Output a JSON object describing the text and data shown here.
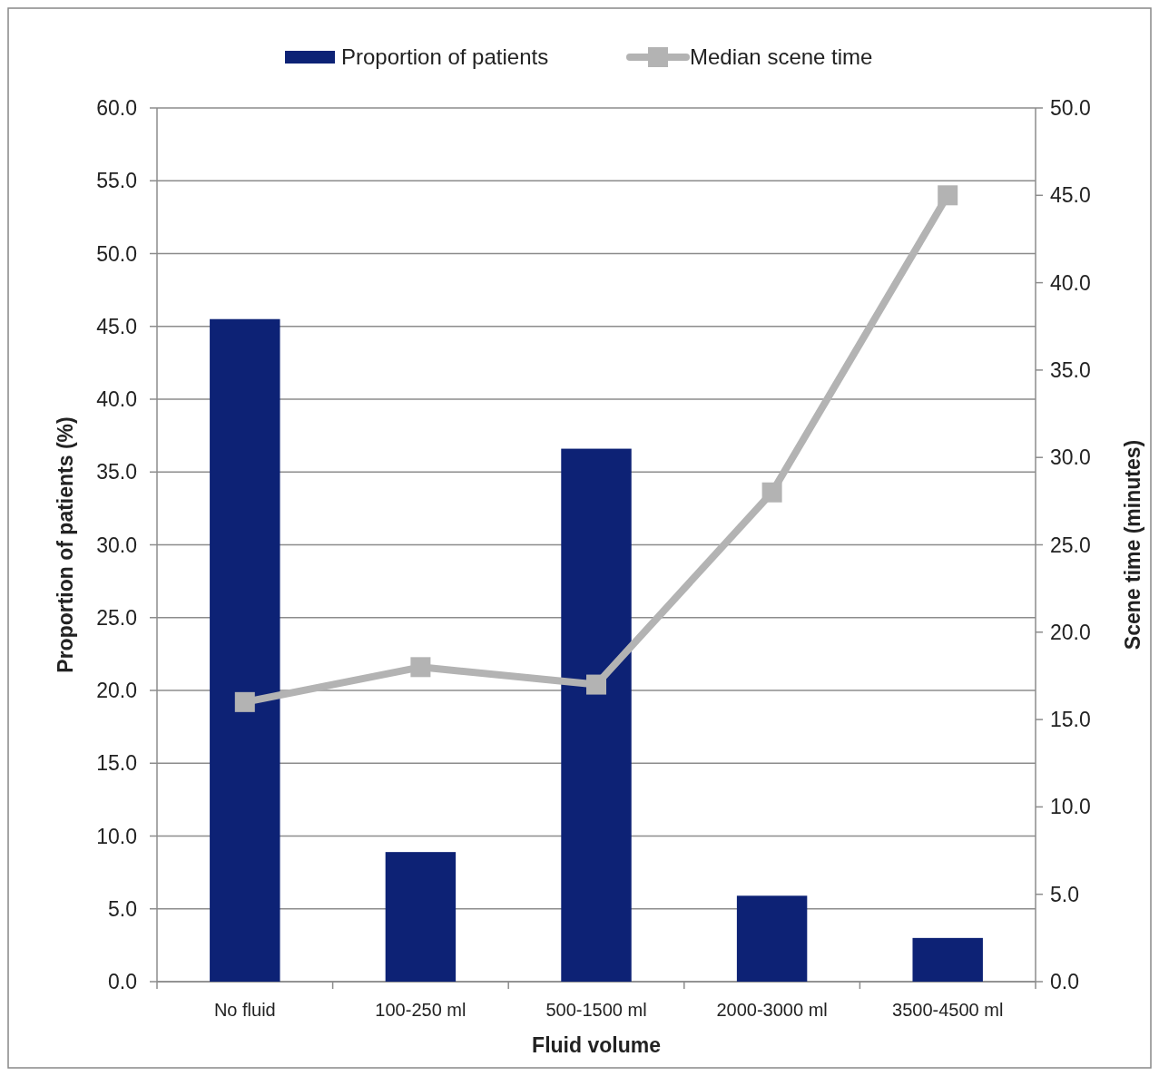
{
  "chart_data": {
    "type": "bar",
    "xlabel": "Fluid volume",
    "ylabel": "Proportion of patients (%)",
    "y2label": "Scene time (minutes)",
    "categories": [
      "No fluid",
      "100-250 ml",
      "500-1500 ml",
      "2000-3000 ml",
      "3500-4500 ml"
    ],
    "series": [
      {
        "name": "Proportion of patients",
        "color": "#0d2275",
        "values": [
          45.5,
          8.9,
          36.6,
          5.9,
          3.0
        ]
      },
      {
        "name": "Median scene time",
        "type": "line",
        "axis": "y2",
        "color": "#b3b3b3",
        "marker": "square",
        "values": [
          16.0,
          18.0,
          17.0,
          28.0,
          45.0
        ]
      }
    ],
    "ylim": [
      0,
      60
    ],
    "yticks": [
      {
        "value": 0,
        "label": "0.0"
      },
      {
        "value": 5,
        "label": "5.0"
      },
      {
        "value": 10,
        "label": "10.0"
      },
      {
        "value": 15,
        "label": "15.0"
      },
      {
        "value": 20,
        "label": "20.0"
      },
      {
        "value": 25,
        "label": "25.0"
      },
      {
        "value": 30,
        "label": "30.0"
      },
      {
        "value": 35,
        "label": "35.0"
      },
      {
        "value": 40,
        "label": "40.0"
      },
      {
        "value": 45,
        "label": "45.0"
      },
      {
        "value": 50,
        "label": "50.0"
      },
      {
        "value": 55,
        "label": "55.0"
      },
      {
        "value": 60,
        "label": "60.0"
      }
    ],
    "y2lim": [
      0,
      50
    ],
    "y2ticks": [
      {
        "value": 0,
        "label": "0.0"
      },
      {
        "value": 5,
        "label": "5.0"
      },
      {
        "value": 10,
        "label": "10.0"
      },
      {
        "value": 15,
        "label": "15.0"
      },
      {
        "value": 20,
        "label": "20.0"
      },
      {
        "value": 25,
        "label": "25.0"
      },
      {
        "value": 30,
        "label": "30.0"
      },
      {
        "value": 35,
        "label": "35.0"
      },
      {
        "value": 40,
        "label": "40.0"
      },
      {
        "value": 45,
        "label": "45.0"
      },
      {
        "value": 50,
        "label": "50.0"
      }
    ],
    "grid": "y",
    "legend": "top"
  }
}
